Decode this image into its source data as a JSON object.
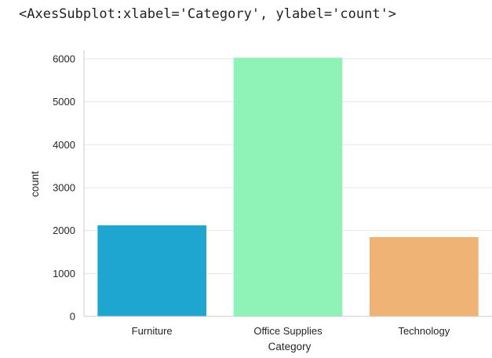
{
  "repr_text": "<AxesSubplot:xlabel='Category', ylabel='count'>",
  "chart_data": {
    "type": "bar",
    "categories": [
      "Furniture",
      "Office Supplies",
      "Technology"
    ],
    "values": [
      2121,
      6026,
      1847
    ],
    "colors": [
      "#1fa6d0",
      "#8ff2b7",
      "#efb375"
    ],
    "xlabel": "Category",
    "ylabel": "count",
    "ylim": [
      0,
      6200
    ],
    "yticks": [
      0,
      1000,
      2000,
      3000,
      4000,
      5000,
      6000
    ],
    "grid": true,
    "style": "seaborn-whitegrid"
  }
}
